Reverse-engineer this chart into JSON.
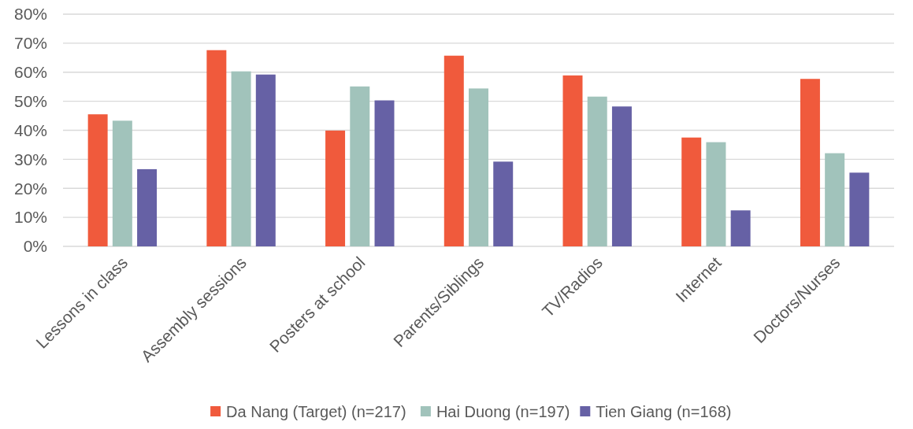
{
  "chart_data": {
    "type": "bar",
    "categories": [
      "Lessons in class",
      "Assembly sessions",
      "Posters at school",
      "Parents/Siblings",
      "TV/Radios",
      "Internet",
      "Doctors/Nurses"
    ],
    "series": [
      {
        "name": "Da Nang (Target) (n=217)",
        "color": "#f05a3c",
        "values": [
          45.5,
          67.6,
          39.9,
          65.7,
          58.9,
          37.5,
          57.7
        ]
      },
      {
        "name": "Hai Duong (n=197)",
        "color": "#a1c3bb",
        "values": [
          43.3,
          60.3,
          55.1,
          54.4,
          51.6,
          35.9,
          32.1
        ]
      },
      {
        "name": "Tien Giang (n=168)",
        "color": "#6661a5",
        "values": [
          26.6,
          59.2,
          50.3,
          29.2,
          48.2,
          12.4,
          25.4
        ]
      }
    ],
    "ylim": [
      0,
      80
    ],
    "yticks": [
      {
        "value": 0,
        "label": "0%"
      },
      {
        "value": 10,
        "label": "10%"
      },
      {
        "value": 20,
        "label": "20%"
      },
      {
        "value": 30,
        "label": "30%"
      },
      {
        "value": 40,
        "label": "40%"
      },
      {
        "value": 50,
        "label": "50%"
      },
      {
        "value": 60,
        "label": "60%"
      },
      {
        "value": 70,
        "label": "70%"
      },
      {
        "value": 80,
        "label": "80%"
      }
    ],
    "grid": "y",
    "legend": "bottom"
  }
}
